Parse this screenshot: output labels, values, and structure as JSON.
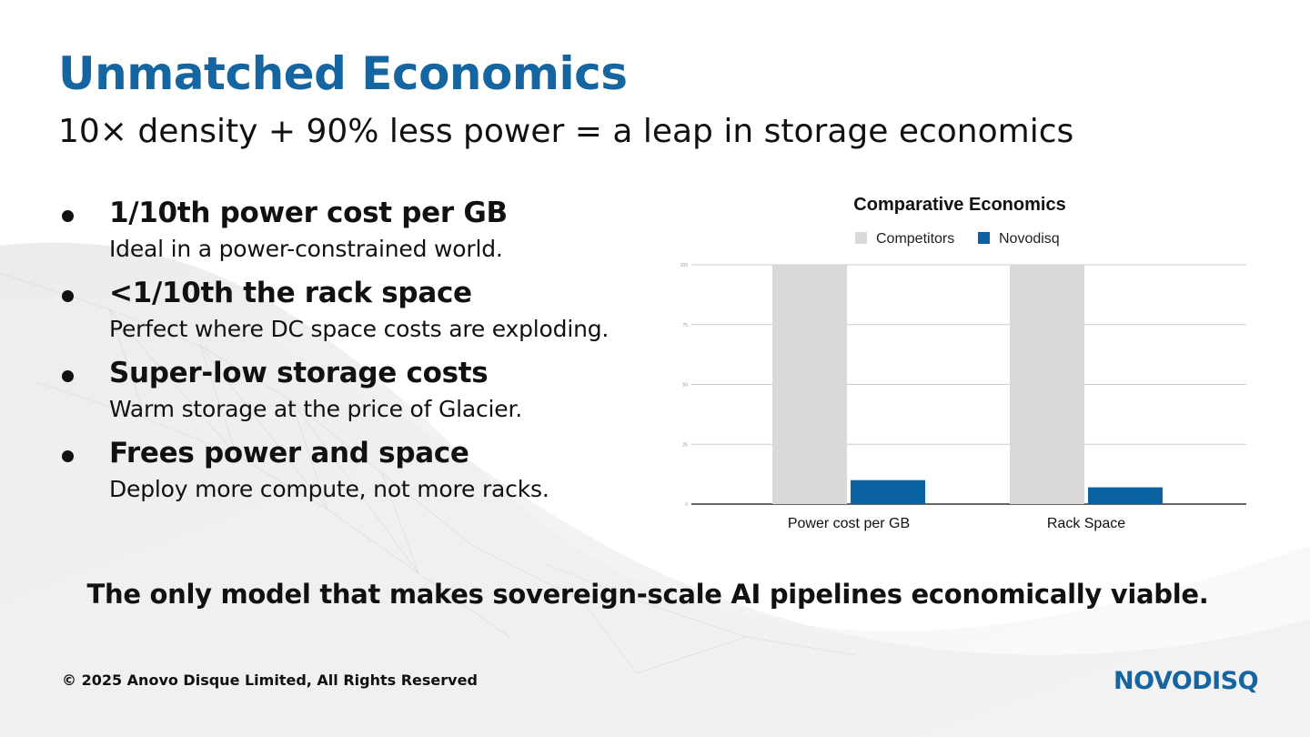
{
  "slide": {
    "title": "Unmatched Economics",
    "subtitle": "10× density + 90% less power = a leap in storage economics",
    "bullets": [
      {
        "heading": "1/10th power cost per GB",
        "detail": "Ideal in a power-constrained world."
      },
      {
        "heading": "<1/10th the rack space",
        "detail": "Perfect where DC space costs are exploding."
      },
      {
        "heading": "Super-low storage costs",
        "detail": "Warm storage at the price of Glacier."
      },
      {
        "heading": "Frees power and space",
        "detail": "Deploy more compute, not more racks."
      }
    ],
    "tagline": "The only model that makes sovereign-scale AI pipelines economically viable.",
    "footer": "© 2025 Anovo Disque Limited, All Rights Reserved",
    "logo": "NOVODISQ"
  },
  "colors": {
    "accent": "#1565a0",
    "competitors": "#d9d9d9",
    "novodisq": "#0b62a3"
  },
  "chart_data": {
    "type": "bar",
    "title": "Comparative Economics",
    "categories": [
      "Power cost per GB",
      "Rack Space"
    ],
    "series": [
      {
        "name": "Competitors",
        "values": [
          100,
          100
        ]
      },
      {
        "name": "Novodisq",
        "values": [
          10,
          7
        ]
      }
    ],
    "ylim": [
      0,
      100
    ],
    "yticks": [
      "0",
      "25",
      "50",
      "75",
      "100"
    ],
    "grid": true,
    "legend": "top"
  }
}
